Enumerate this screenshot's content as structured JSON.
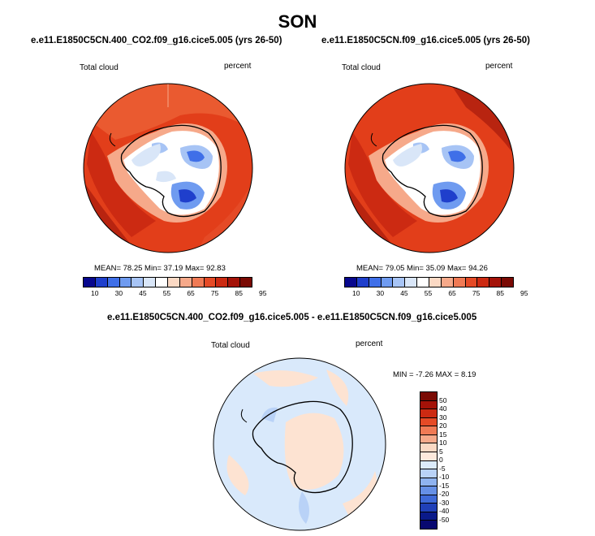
{
  "page": {
    "title": "SON"
  },
  "panels": [
    {
      "case_title": "e.e11.E1850C5CN.400_CO2.f09_g16.cice5.005 (yrs 26-50)",
      "left_label": "Total cloud",
      "right_label": "percent",
      "stats": "MEAN= 78.25  Min= 37.19  Max= 92.83"
    },
    {
      "case_title": "e.e11.E1850C5CN.f09_g16.cice5.005 (yrs 26-50)",
      "left_label": "Total cloud",
      "right_label": "percent",
      "stats": "MEAN= 79.05  Min= 35.09  Max= 94.26"
    },
    {
      "case_title": "e.e11.E1850C5CN.400_CO2.f09_g16.cice5.005 - e.e11.E1850C5CN.f09_g16.cice5.005",
      "left_label": "Total cloud",
      "right_label": "percent",
      "stats": "MIN =  -7.26 MAX =   8.19"
    }
  ],
  "colorbar_field": {
    "labels": [
      "10",
      "30",
      "45",
      "55",
      "65",
      "75",
      "85",
      "95"
    ],
    "colors": [
      "#08088e",
      "#1f3fcc",
      "#3f6fe8",
      "#6f9bf0",
      "#a7c4f5",
      "#d9e6f8",
      "#ffffff",
      "#fbd9c4",
      "#f6a98a",
      "#f07a55",
      "#e54a26",
      "#cc2a12",
      "#a41208",
      "#7a0a04"
    ]
  },
  "colorbar_diff": {
    "labels": [
      "50",
      "40",
      "30",
      "20",
      "15",
      "10",
      "5",
      "0",
      "-5",
      "-10",
      "-15",
      "-20",
      "-30",
      "-40",
      "-50"
    ],
    "colors": [
      "#7a0a04",
      "#a41208",
      "#cc2a12",
      "#e54a26",
      "#f07a55",
      "#f6a98a",
      "#fbd9c4",
      "#fde9dc",
      "#dcebfb",
      "#b9d2f7",
      "#8fb3f0",
      "#6690e6",
      "#3f6ad8",
      "#2040b8",
      "#0a1a8a",
      "#080870"
    ]
  },
  "colors": {
    "ocean_high": "#e23e1a",
    "ocean_max": "#b82410",
    "diff_background": "#d9e9fb",
    "diff_positive": "#fde3d2"
  }
}
